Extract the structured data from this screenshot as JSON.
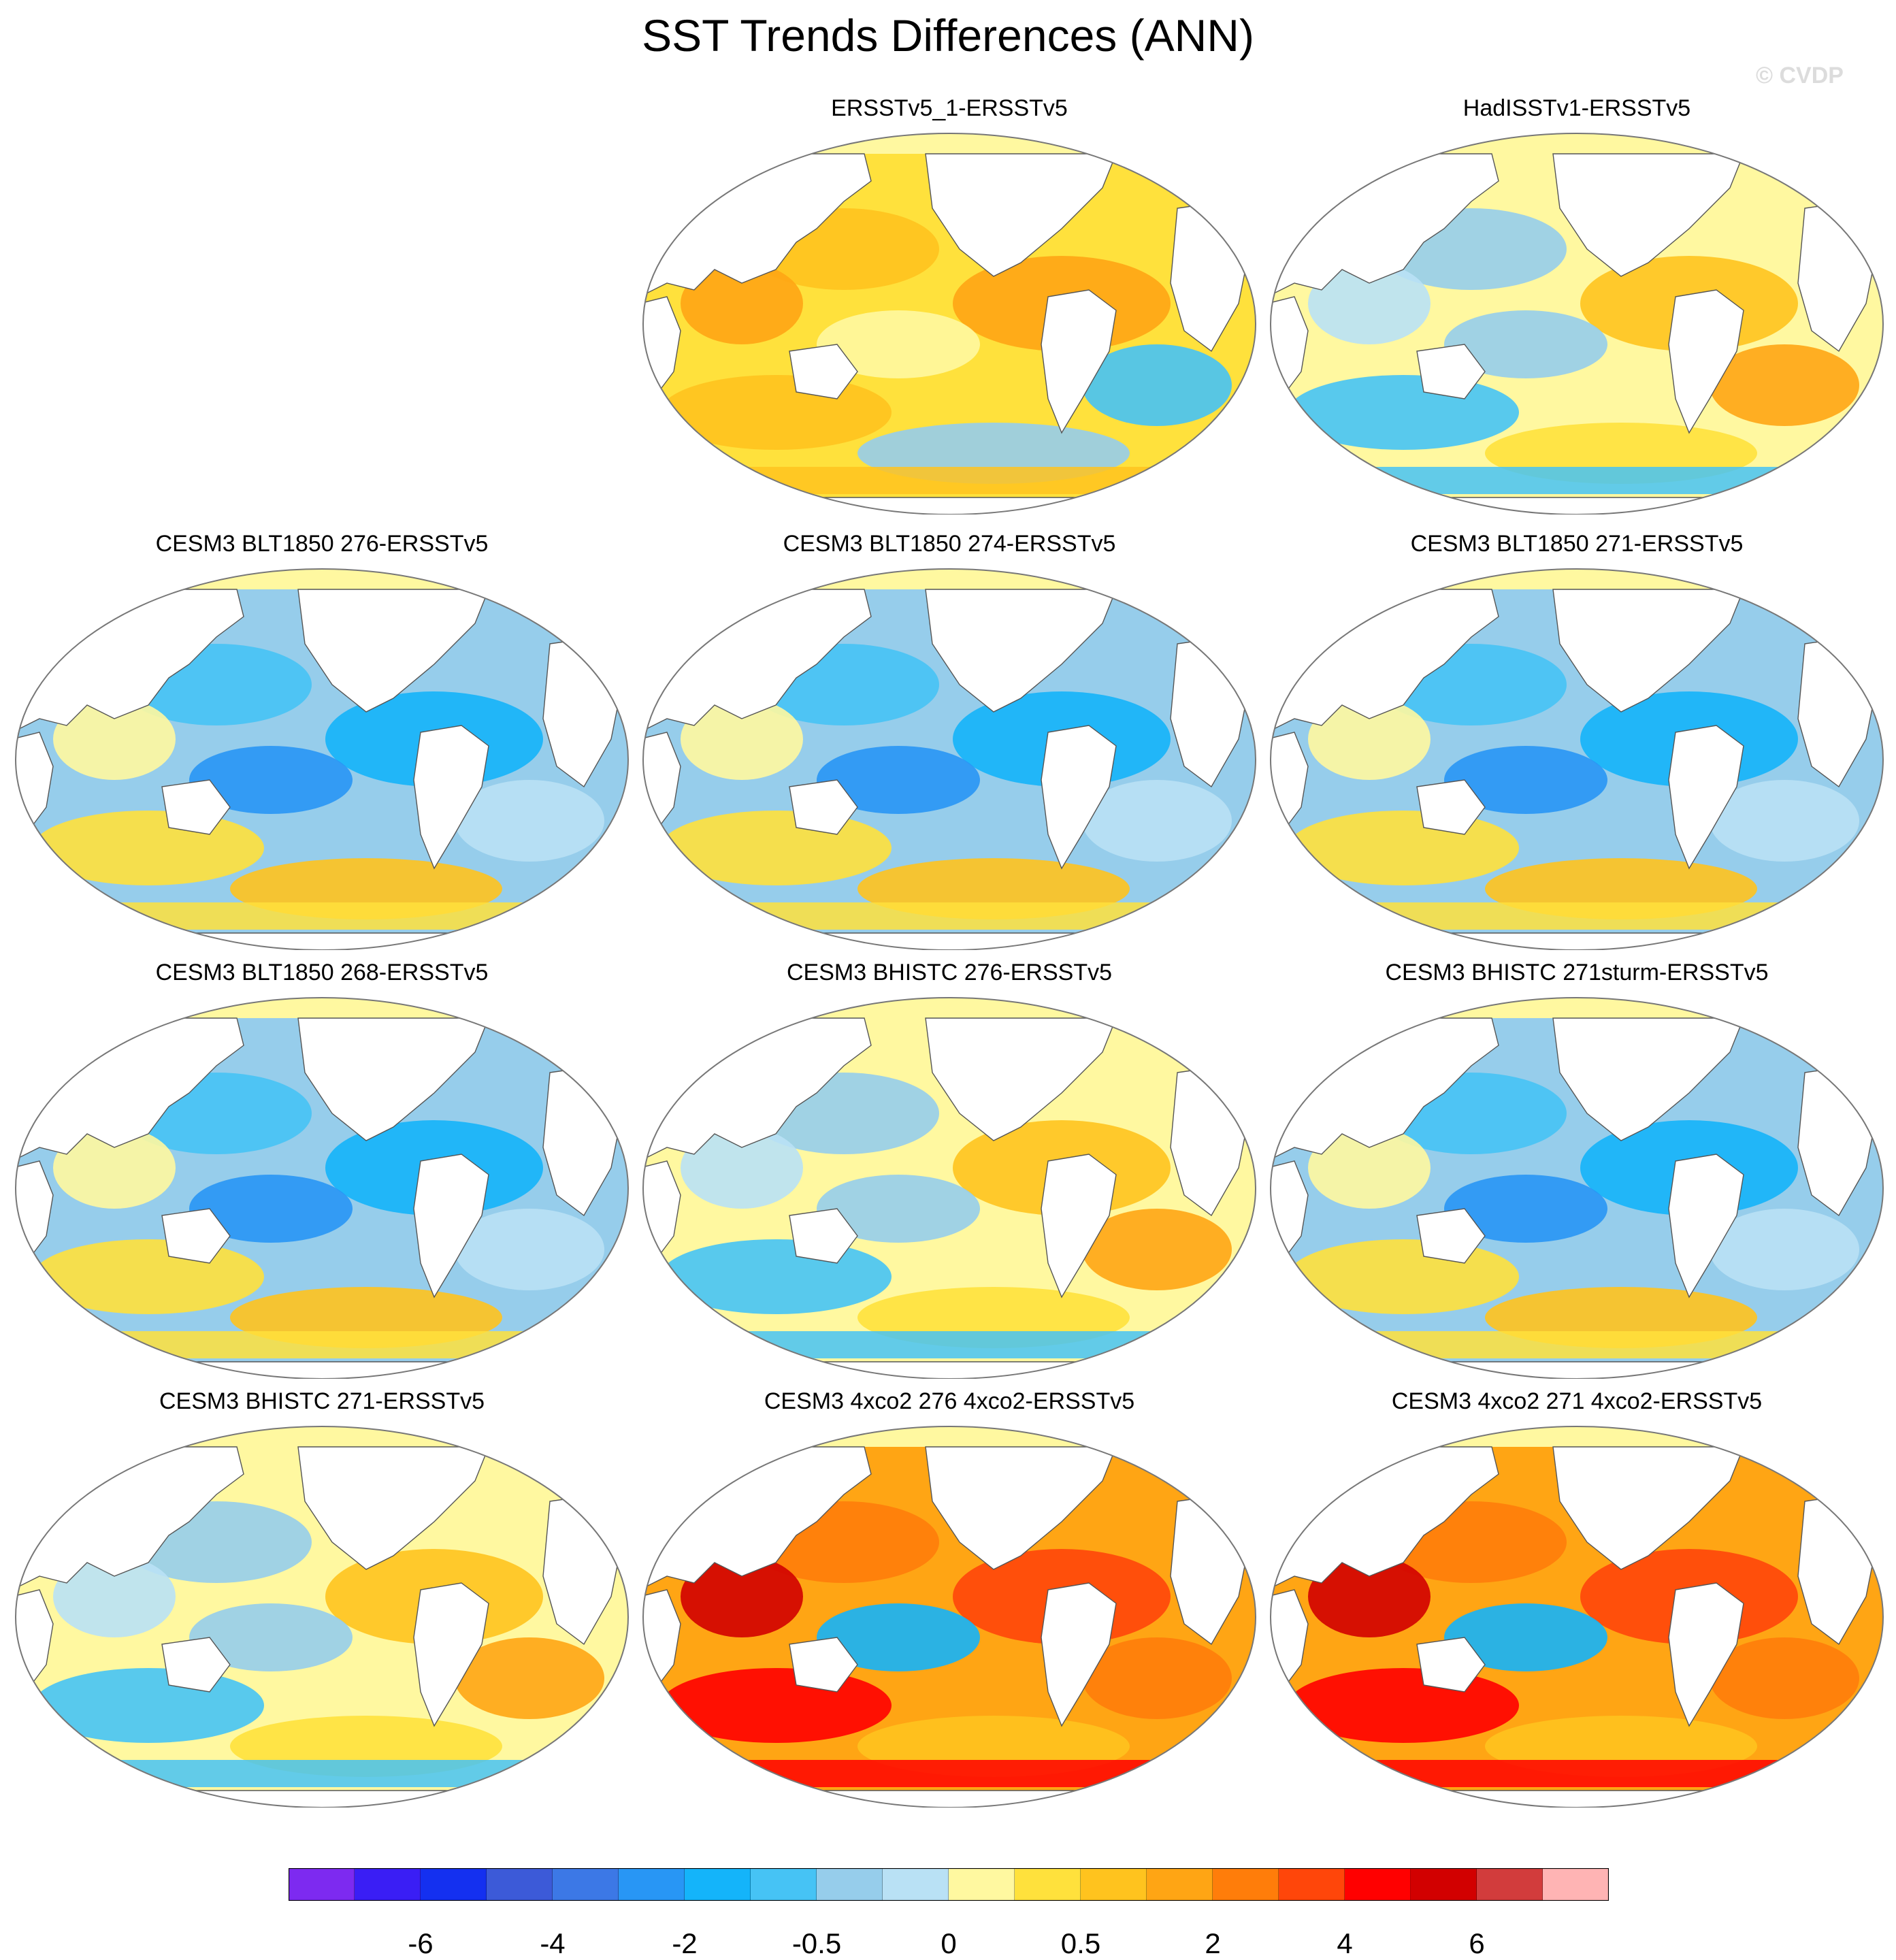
{
  "figure": {
    "title": "SST Trends Differences (ANN)",
    "watermark": "© CVDP"
  },
  "panels": [
    {
      "id": "p1",
      "title": "ERSSTv5_1-ERSSTv5",
      "tone": "warm-moderate"
    },
    {
      "id": "p2",
      "title": "HadISSTv1-ERSSTv5",
      "tone": "mixed"
    },
    {
      "id": "p3",
      "title": "CESM3 BLT1850 276-ERSSTv5",
      "tone": "cool"
    },
    {
      "id": "p4",
      "title": "CESM3 BLT1850 274-ERSSTv5",
      "tone": "cool"
    },
    {
      "id": "p5",
      "title": "CESM3 BLT1850 271-ERSSTv5",
      "tone": "cool"
    },
    {
      "id": "p6",
      "title": "CESM3 BLT1850 268-ERSSTv5",
      "tone": "cool"
    },
    {
      "id": "p7",
      "title": "CESM3 BHISTC 276-ERSSTv5",
      "tone": "mixed"
    },
    {
      "id": "p8",
      "title": "CESM3 BHISTC 271sturm-ERSSTv5",
      "tone": "cool"
    },
    {
      "id": "p9",
      "title": "CESM3 BHISTC 271-ERSSTv5",
      "tone": "mixed"
    },
    {
      "id": "p10",
      "title": "CESM3 4xco2 276 4xco2-ERSSTv5",
      "tone": "hot"
    },
    {
      "id": "p11",
      "title": "CESM3 4xco2 271 4xco2-ERSSTv5",
      "tone": "hot"
    }
  ],
  "colorbar": {
    "colors": [
      "#7d2af0",
      "#3a1ef5",
      "#1430f0",
      "#3c5ad8",
      "#3c78e6",
      "#2896f5",
      "#14b4fa",
      "#46c3f5",
      "#96cdeb",
      "#b9e1f5",
      "#fff8a0",
      "#ffe13c",
      "#ffc31e",
      "#ffa514",
      "#ff7d0a",
      "#ff460a",
      "#ff0000",
      "#d20000",
      "#d23c3c",
      "#ffb4b4"
    ],
    "labels": [
      "-6",
      "-4",
      "-2",
      "-0.5",
      "0",
      "0.5",
      "2",
      "4",
      "6"
    ]
  }
}
